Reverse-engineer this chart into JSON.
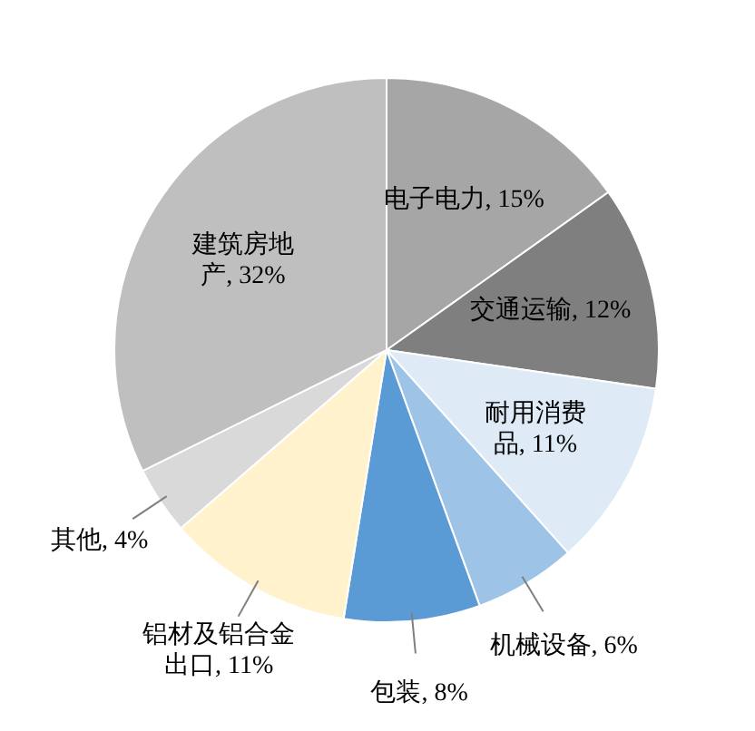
{
  "chart_data": {
    "type": "pie",
    "categories": [
      "电子电力",
      "交通运输",
      "耐用消费品",
      "机械设备",
      "包装",
      "铝材及铝合金出口",
      "其他",
      "建筑房地产"
    ],
    "values": [
      15,
      12,
      11,
      6,
      8,
      11,
      4,
      32
    ],
    "value_labels": [
      "15%",
      "12%",
      "11%",
      "6%",
      "8%",
      "11%",
      "4%",
      "32%"
    ],
    "colors": [
      "#a6a6a6",
      "#7f7f7f",
      "#deebf7",
      "#9dc3e6",
      "#5b9bd5",
      "#fff2cc",
      "#d9d9d9",
      "#bfbfbf"
    ],
    "legend": false
  }
}
